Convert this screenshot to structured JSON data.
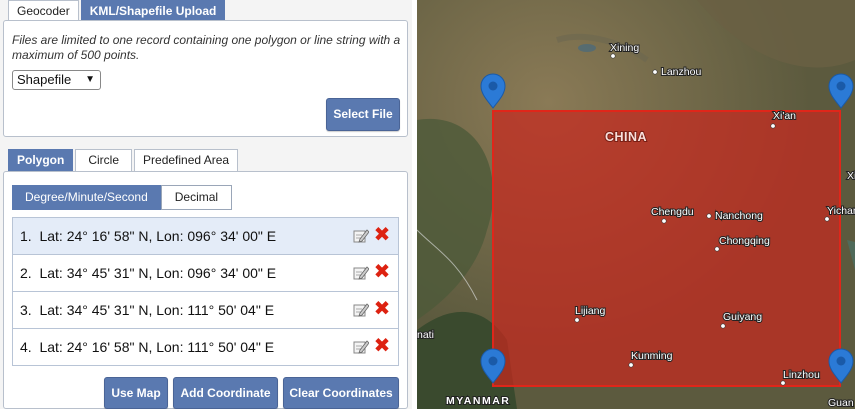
{
  "top_tabs": [
    "Geocoder",
    "KML/Shapefile Upload"
  ],
  "upload": {
    "note": "Files are limited to one record containing one polygon or line string with a maximum of 500 points.",
    "file_type": "Shapefile",
    "select_label": "Select File"
  },
  "shape_tabs": [
    "Polygon",
    "Circle",
    "Predefined Area"
  ],
  "formats": [
    "Degree/Minute/Second",
    "Decimal"
  ],
  "coordinates": [
    {
      "num": "1.",
      "text": "Lat: 24° 16' 58\" N, Lon: 096° 34' 00\" E"
    },
    {
      "num": "2.",
      "text": "Lat: 34° 45' 31\" N, Lon: 096° 34' 00\" E"
    },
    {
      "num": "3.",
      "text": "Lat: 34° 45' 31\" N, Lon: 111° 50' 04\" E"
    },
    {
      "num": "4.",
      "text": "Lat: 24° 16' 58\" N, Lon: 111° 50' 04\" E"
    }
  ],
  "buttons": {
    "use_map": "Use Map",
    "add_coordinate": "Add Coordinate",
    "clear_coordinates": "Clear Coordinates"
  },
  "map": {
    "region_label": "CHINA",
    "country_label": "MYANMAR",
    "cities": [
      "Xining",
      "Lanzhou",
      "Xi'an",
      "Chengdu",
      "Nanchong",
      "Chongqing",
      "Lijiang",
      "Guiyang",
      "Kunming",
      "Linzhou",
      "Yichan",
      "Xi",
      "nati",
      "Guan"
    ]
  },
  "colors": {
    "accent": "#5a79b0",
    "polygon_fill": "#c8281e",
    "marker": "#2b7ad6",
    "delete": "#dd2211"
  }
}
